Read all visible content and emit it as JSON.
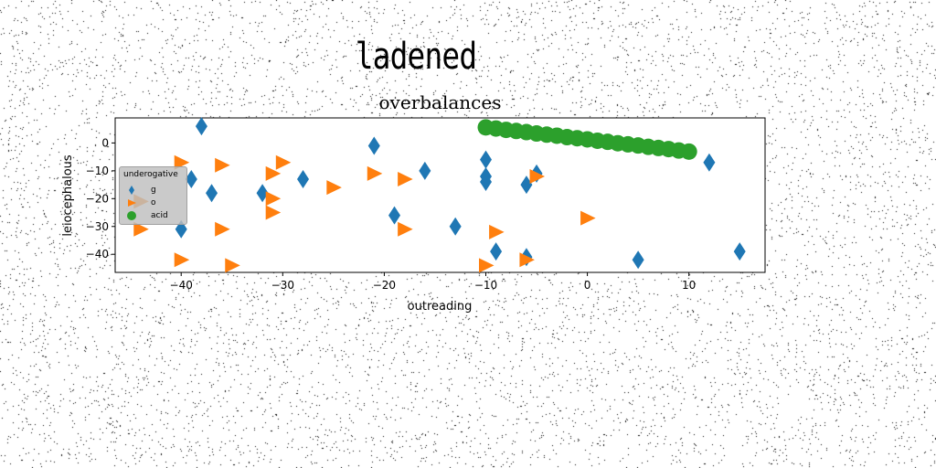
{
  "figure": {
    "suptitle": "ladened"
  },
  "chart_data": {
    "type": "scatter",
    "title": "overbalances",
    "xlabel": "outreading",
    "ylabel": "leiocephalous",
    "xlim": [
      -46.5,
      17.5
    ],
    "ylim": [
      -46.5,
      9
    ],
    "xticks": [
      -40,
      -30,
      -20,
      -10,
      0,
      10
    ],
    "yticks": [
      0,
      -10,
      -20,
      -30,
      -40
    ],
    "grid": false,
    "legend": {
      "title": "underogative",
      "placement": "center-left"
    },
    "series": [
      {
        "name": "g",
        "marker": "diamond",
        "color": "#1f77b4",
        "points": [
          [
            -38,
            6
          ],
          [
            -39,
            -13
          ],
          [
            -37,
            -18
          ],
          [
            -40,
            -31
          ],
          [
            -32,
            -18
          ],
          [
            -28,
            -13
          ],
          [
            -21,
            -1
          ],
          [
            -19,
            -26
          ],
          [
            -16,
            -10
          ],
          [
            -13,
            -30
          ],
          [
            -10,
            -6
          ],
          [
            -10,
            -12
          ],
          [
            -10,
            -14
          ],
          [
            -9,
            -39
          ],
          [
            -6,
            -15
          ],
          [
            -5,
            -11
          ],
          [
            -6,
            -41
          ],
          [
            5,
            -42
          ],
          [
            12,
            -7
          ],
          [
            15,
            -39
          ]
        ]
      },
      {
        "name": "o",
        "marker": "triangle-right",
        "color": "#ff7f0e",
        "points": [
          [
            -40,
            -7
          ],
          [
            -36,
            -8
          ],
          [
            -44,
            -31
          ],
          [
            -40,
            -42
          ],
          [
            -36,
            -31
          ],
          [
            -35,
            -44
          ],
          [
            -30,
            -7
          ],
          [
            -31,
            -11
          ],
          [
            -31,
            -20
          ],
          [
            -31,
            -25
          ],
          [
            -25,
            -16
          ],
          [
            -21,
            -11
          ],
          [
            -18,
            -13
          ],
          [
            -18,
            -31
          ],
          [
            -10,
            -44
          ],
          [
            -9,
            -32
          ],
          [
            -5,
            -12
          ],
          [
            -6,
            -42
          ],
          [
            0,
            -27
          ],
          [
            -44,
            -21
          ]
        ]
      },
      {
        "name": "acid",
        "marker": "circle",
        "color": "#2ca02c",
        "points": [
          [
            -10,
            5.6
          ],
          [
            -9,
            5.2
          ],
          [
            -8,
            4.7
          ],
          [
            -7,
            4.3
          ],
          [
            -6,
            3.9
          ],
          [
            -5,
            3.4
          ],
          [
            -4,
            3.0
          ],
          [
            -3,
            2.6
          ],
          [
            -2,
            2.1
          ],
          [
            -1,
            1.7
          ],
          [
            0,
            1.3
          ],
          [
            1,
            0.8
          ],
          [
            2,
            0.4
          ],
          [
            3,
            -0.1
          ],
          [
            4,
            -0.5
          ],
          [
            5,
            -0.9
          ],
          [
            6,
            -1.4
          ],
          [
            7,
            -1.8
          ],
          [
            8,
            -2.2
          ],
          [
            9,
            -2.7
          ],
          [
            10,
            -3.1
          ]
        ]
      }
    ]
  }
}
